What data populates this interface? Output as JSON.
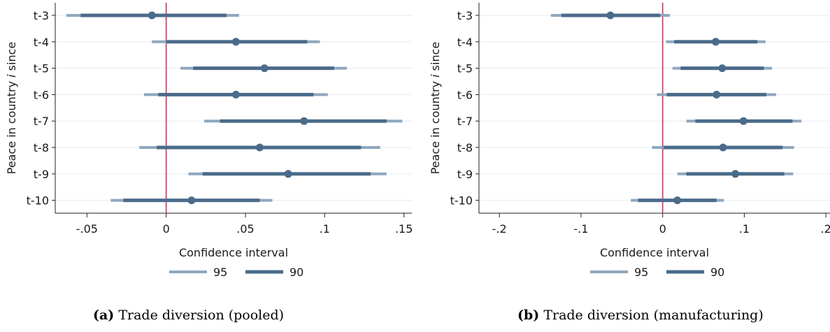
{
  "chart_data": [
    {
      "type": "coefficient-plot",
      "panel_label": "(a)",
      "caption": "Trade diversion (pooled)",
      "ylabel_parts": [
        "Peace in country ",
        "i",
        " since"
      ],
      "xlabel": "Confidence interval",
      "categories": [
        "t-3",
        "t-4",
        "t-5",
        "t-6",
        "t-7",
        "t-8",
        "t-9",
        "t-10"
      ],
      "estimates": [
        -0.009,
        0.044,
        0.062,
        0.044,
        0.087,
        0.059,
        0.077,
        0.016
      ],
      "ci95": [
        [
          -0.063,
          0.046
        ],
        [
          -0.009,
          0.097
        ],
        [
          0.009,
          0.114
        ],
        [
          -0.014,
          0.102
        ],
        [
          0.024,
          0.149
        ],
        [
          -0.017,
          0.135
        ],
        [
          0.014,
          0.139
        ],
        [
          -0.035,
          0.067
        ]
      ],
      "ci90": [
        [
          -0.054,
          0.038
        ],
        [
          0.0,
          0.089
        ],
        [
          0.017,
          0.106
        ],
        [
          -0.005,
          0.093
        ],
        [
          0.034,
          0.139
        ],
        [
          -0.006,
          0.123
        ],
        [
          0.023,
          0.129
        ],
        [
          -0.027,
          0.059
        ]
      ],
      "xlim": [
        -0.07,
        0.155
      ],
      "xticks": [
        -0.05,
        0,
        0.05,
        0.1,
        0.15
      ],
      "xtick_labels": [
        "-.05",
        "0",
        ".05",
        ".1",
        ".15"
      ],
      "reference_line": 0,
      "legend": [
        "95",
        "90"
      ],
      "legend_placement": "bottom"
    },
    {
      "type": "coefficient-plot",
      "panel_label": "(b)",
      "caption": "Trade diversion (manufacturing)",
      "ylabel_parts": [
        "Peace in country ",
        "i",
        " since"
      ],
      "xlabel": "Confidence interval",
      "categories": [
        "t-3",
        "t-4",
        "t-5",
        "t-6",
        "t-7",
        "t-8",
        "t-9",
        "t-10"
      ],
      "estimates": [
        -0.064,
        0.065,
        0.073,
        0.066,
        0.099,
        0.074,
        0.089,
        0.018
      ],
      "ci95": [
        [
          -0.137,
          0.009
        ],
        [
          0.004,
          0.126
        ],
        [
          0.012,
          0.134
        ],
        [
          -0.007,
          0.139
        ],
        [
          0.029,
          0.17
        ],
        [
          -0.013,
          0.161
        ],
        [
          0.018,
          0.16
        ],
        [
          -0.039,
          0.075
        ]
      ],
      "ci90": [
        [
          -0.124,
          -0.003
        ],
        [
          0.014,
          0.116
        ],
        [
          0.022,
          0.124
        ],
        [
          0.005,
          0.127
        ],
        [
          0.04,
          0.159
        ],
        [
          0.001,
          0.147
        ],
        [
          0.029,
          0.149
        ],
        [
          -0.03,
          0.066
        ]
      ],
      "xlim": [
        -0.225,
        0.205
      ],
      "xticks": [
        -0.2,
        -0.1,
        0,
        0.1,
        0.2
      ],
      "xtick_labels": [
        "-.2",
        "-.1",
        "0",
        ".1",
        ".2"
      ],
      "reference_line": 0,
      "legend": [
        "95",
        "90"
      ],
      "legend_placement": "bottom"
    }
  ],
  "colors": {
    "ci95": "#8fa7bd",
    "ci90": "#4a6b8a",
    "point": "#4a6b8a",
    "reference_line": "#b0405e",
    "grid": "#e6ebf0",
    "axis": "#222222"
  }
}
